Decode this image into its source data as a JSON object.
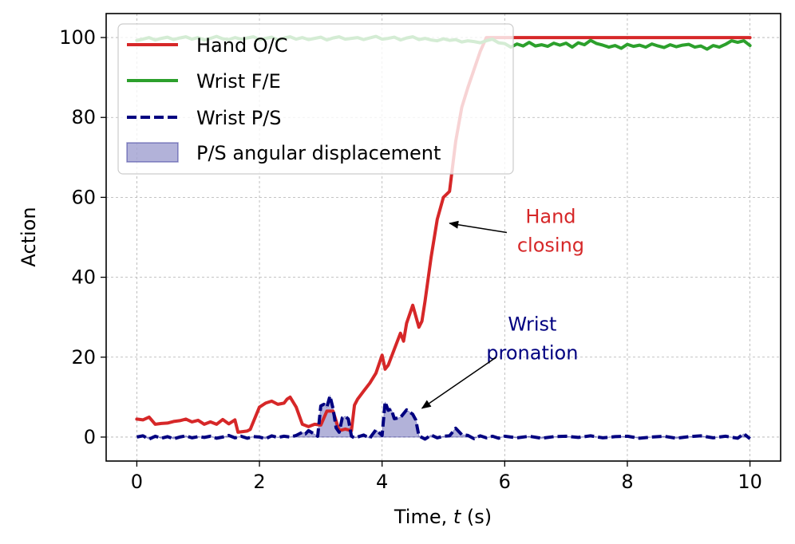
{
  "chart_data": {
    "type": "line",
    "xlabel_prefix": "Time, ",
    "xlabel_var": "t",
    "xlabel_suffix": " (s)",
    "ylabel": "Action",
    "xlim": [
      -0.5,
      10.5
    ],
    "ylim": [
      -6,
      106
    ],
    "xticks": [
      0,
      2,
      4,
      6,
      8,
      10
    ],
    "yticks": [
      0,
      20,
      40,
      60,
      80,
      100
    ],
    "grid": true,
    "legend_position": "top-left",
    "series": [
      {
        "name": "Hand O/C",
        "color": "#d62728",
        "style": "solid",
        "x": [
          0,
          0.1,
          0.2,
          0.3,
          0.4,
          0.5,
          0.6,
          0.7,
          0.8,
          0.9,
          1.0,
          1.1,
          1.2,
          1.3,
          1.4,
          1.5,
          1.6,
          1.65,
          1.8,
          1.85,
          2.0,
          2.1,
          2.2,
          2.3,
          2.4,
          2.45,
          2.5,
          2.6,
          2.7,
          2.8,
          2.9,
          3.0,
          3.1,
          3.2,
          3.3,
          3.4,
          3.5,
          3.55,
          3.6,
          3.7,
          3.8,
          3.9,
          4.0,
          4.05,
          4.1,
          4.2,
          4.3,
          4.35,
          4.4,
          4.5,
          4.6,
          4.65,
          4.7,
          4.8,
          4.9,
          5.0,
          5.1,
          5.2,
          5.3,
          5.4,
          5.5,
          5.6,
          5.7,
          5.8,
          5.9,
          6.0,
          10.0
        ],
        "y": [
          4.5,
          4.3,
          5.0,
          3.2,
          3.4,
          3.5,
          3.9,
          4.1,
          4.5,
          3.8,
          4.2,
          3.2,
          3.8,
          3.2,
          4.4,
          3.3,
          4.3,
          1.2,
          1.5,
          1.9,
          7.5,
          8.5,
          9.0,
          8.2,
          8.5,
          9.5,
          10.0,
          7.5,
          3.2,
          2.6,
          3.2,
          3.0,
          6.5,
          6.5,
          1.6,
          2.0,
          1.6,
          8.0,
          9.5,
          11.5,
          13.5,
          16.0,
          20.5,
          17.0,
          18.0,
          22.0,
          26.0,
          24.0,
          28.5,
          33.0,
          27.5,
          29.0,
          34.0,
          45.0,
          54.5,
          60.0,
          61.5,
          74.0,
          82.5,
          87.5,
          92.0,
          96.5,
          100.0,
          100.0,
          100.0,
          100.0,
          100.0
        ]
      },
      {
        "name": "Wrist F/E",
        "color": "#2ca02c",
        "style": "solid",
        "x": [
          0,
          0.1,
          0.2,
          0.3,
          0.4,
          0.5,
          0.6,
          0.7,
          0.8,
          0.9,
          1.0,
          1.1,
          1.2,
          1.3,
          1.4,
          1.5,
          1.6,
          1.7,
          1.8,
          1.9,
          2.0,
          2.1,
          2.2,
          2.3,
          2.4,
          2.5,
          2.6,
          2.7,
          2.8,
          2.9,
          3.0,
          3.1,
          3.2,
          3.3,
          3.4,
          3.5,
          3.6,
          3.7,
          3.8,
          3.9,
          4.0,
          4.1,
          4.2,
          4.3,
          4.4,
          4.5,
          4.6,
          4.7,
          4.8,
          4.9,
          5.0,
          5.1,
          5.2,
          5.3,
          5.4,
          5.5,
          5.6,
          5.7,
          5.8,
          5.9,
          6.0,
          6.1,
          6.2,
          6.3,
          6.4,
          6.5,
          6.6,
          6.7,
          6.8,
          6.9,
          7.0,
          7.1,
          7.2,
          7.3,
          7.4,
          7.5,
          7.6,
          7.7,
          7.8,
          7.9,
          8.0,
          8.1,
          8.2,
          8.3,
          8.4,
          8.5,
          8.6,
          8.7,
          8.8,
          8.9,
          9.0,
          9.1,
          9.2,
          9.3,
          9.4,
          9.5,
          9.6,
          9.7,
          9.8,
          9.9,
          10.0
        ],
        "y": [
          99.3,
          99.6,
          100.0,
          99.4,
          99.8,
          100.1,
          99.5,
          99.9,
          100.2,
          99.6,
          100.0,
          99.4,
          99.8,
          100.3,
          99.7,
          99.5,
          100.0,
          99.6,
          99.9,
          100.2,
          99.5,
          99.8,
          100.1,
          99.4,
          99.9,
          100.2,
          99.6,
          100.0,
          99.5,
          99.8,
          100.1,
          99.4,
          99.9,
          100.2,
          99.6,
          99.8,
          100.0,
          99.5,
          99.9,
          100.3,
          99.6,
          99.8,
          100.1,
          99.4,
          99.9,
          100.2,
          99.5,
          99.8,
          99.4,
          99.2,
          99.7,
          99.3,
          99.5,
          98.9,
          99.2,
          99.0,
          98.7,
          99.2,
          99.6,
          98.7,
          98.5,
          97.6,
          98.4,
          97.9,
          98.8,
          97.9,
          98.2,
          97.8,
          98.6,
          98.1,
          98.6,
          97.6,
          98.7,
          98.2,
          99.3,
          98.5,
          98.1,
          97.6,
          98.0,
          97.3,
          98.3,
          97.8,
          98.1,
          97.6,
          98.4,
          97.9,
          97.5,
          98.2,
          97.7,
          98.1,
          98.3,
          97.6,
          97.9,
          97.1,
          98.0,
          97.6,
          98.3,
          99.2,
          98.8,
          99.2,
          98.0
        ]
      },
      {
        "name": "Wrist P/S",
        "color": "#000080",
        "style": "dashed",
        "x": [
          0,
          0.1,
          0.2,
          0.3,
          0.4,
          0.5,
          0.6,
          0.7,
          0.8,
          0.9,
          1.0,
          1.1,
          1.2,
          1.3,
          1.4,
          1.5,
          1.6,
          1.7,
          1.8,
          1.9,
          2.0,
          2.1,
          2.2,
          2.3,
          2.4,
          2.5,
          2.6,
          2.7,
          2.75,
          2.8,
          2.9,
          2.95,
          3.0,
          3.05,
          3.1,
          3.15,
          3.2,
          3.25,
          3.3,
          3.35,
          3.4,
          3.45,
          3.5,
          3.55,
          3.6,
          3.7,
          3.8,
          3.85,
          3.9,
          4.0,
          4.05,
          4.1,
          4.15,
          4.2,
          4.3,
          4.4,
          4.5,
          4.55,
          4.6,
          4.7,
          4.8,
          4.9,
          5.0,
          5.1,
          5.2,
          5.3,
          5.4,
          5.5,
          5.6,
          5.7,
          5.8,
          5.9,
          6.0,
          6.2,
          6.4,
          6.6,
          6.8,
          7.0,
          7.2,
          7.4,
          7.6,
          7.8,
          8.0,
          8.2,
          8.4,
          8.6,
          8.8,
          9.0,
          9.2,
          9.4,
          9.6,
          9.8,
          9.9,
          10.0
        ],
        "y": [
          0.0,
          0.3,
          -0.5,
          0.2,
          -0.3,
          0.1,
          -0.4,
          0.0,
          0.3,
          -0.2,
          0.1,
          -0.1,
          0.2,
          -0.3,
          0.0,
          0.4,
          -0.2,
          0.2,
          -0.3,
          0.1,
          0.0,
          -0.4,
          0.3,
          -0.1,
          0.2,
          0.0,
          0.4,
          1.2,
          0.8,
          1.6,
          0.7,
          0.2,
          7.8,
          8.2,
          7.5,
          10.3,
          7.2,
          2.3,
          1.2,
          4.8,
          5.2,
          4.5,
          0.2,
          -0.2,
          0.0,
          0.5,
          -0.3,
          0.8,
          1.8,
          0.4,
          8.8,
          6.7,
          7.0,
          4.6,
          4.9,
          6.8,
          5.7,
          4.3,
          0.3,
          -0.5,
          0.5,
          -0.2,
          0.2,
          0.3,
          2.2,
          0.6,
          0.4,
          -0.4,
          0.3,
          -0.2,
          0.2,
          -0.3,
          0.2,
          -0.2,
          0.2,
          -0.3,
          0.1,
          0.2,
          -0.1,
          0.3,
          -0.2,
          0.1,
          0.2,
          -0.3,
          0.0,
          0.2,
          -0.3,
          0.1,
          0.3,
          -0.2,
          0.2,
          -0.3,
          0.8,
          -0.4
        ]
      }
    ],
    "fill": {
      "name": "P/S angular displacement",
      "color": "#000080",
      "opacity": 0.3,
      "of_series": "Wrist P/S"
    },
    "annotations": [
      {
        "lines": [
          "Hand",
          "closing"
        ],
        "color": "#d62728",
        "text_at": [
          6.75,
          50
        ],
        "arrow_to": [
          5.1,
          53.5
        ]
      },
      {
        "lines": [
          "Wrist",
          "pronation"
        ],
        "color": "#000080",
        "text_at": [
          6.45,
          23
        ],
        "arrow_to": [
          4.65,
          7.2
        ]
      }
    ]
  }
}
